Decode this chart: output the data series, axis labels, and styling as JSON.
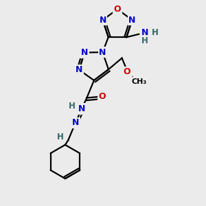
{
  "bg_color": "#ebebeb",
  "atom_color_N": "#0000cc",
  "atom_color_O": "#cc0000",
  "atom_color_H": "#336666",
  "bond_color": "#000000",
  "bond_width": 1.6,
  "figsize": [
    3.0,
    3.0
  ],
  "dpi": 100,
  "xlim": [
    0,
    10
  ],
  "ylim": [
    0,
    10
  ]
}
